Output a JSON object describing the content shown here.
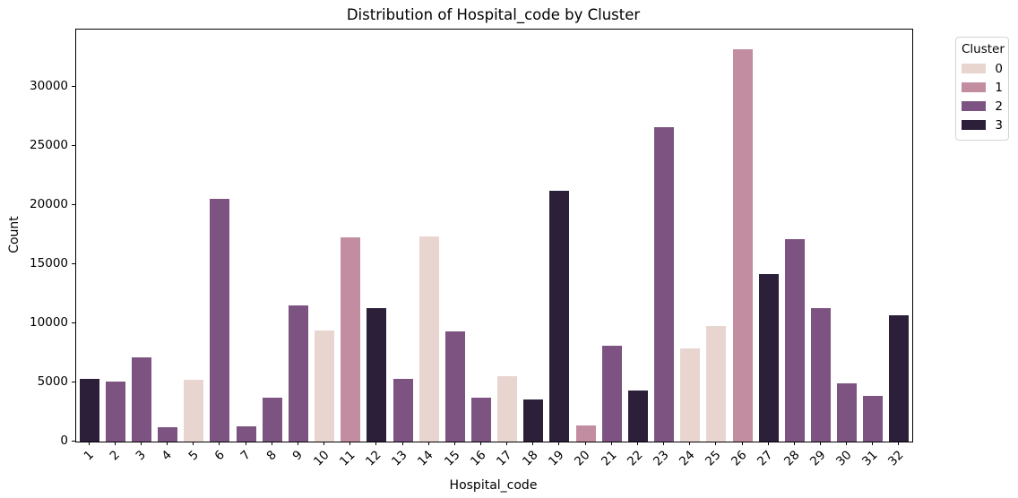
{
  "chart_data": {
    "type": "bar",
    "title": "Distribution of Hospital_code by Cluster",
    "xlabel": "Hospital_code",
    "ylabel": "Count",
    "ylim": [
      0,
      34850
    ],
    "yticks": [
      0,
      5000,
      10000,
      15000,
      20000,
      25000,
      30000
    ],
    "grid": false,
    "legend": {
      "title": "Cluster",
      "position": "upper-right-outside",
      "entries": [
        {
          "label": "0",
          "color": "#e9d5cf"
        },
        {
          "label": "1",
          "color": "#c38da1"
        },
        {
          "label": "2",
          "color": "#7d5381"
        },
        {
          "label": "3",
          "color": "#2c1f3a"
        }
      ]
    },
    "bars": [
      {
        "category": "1",
        "cluster": "3",
        "value": 5300
      },
      {
        "category": "2",
        "cluster": "2",
        "value": 5100
      },
      {
        "category": "3",
        "cluster": "2",
        "value": 7100
      },
      {
        "category": "4",
        "cluster": "2",
        "value": 1200
      },
      {
        "category": "5",
        "cluster": "0",
        "value": 5250
      },
      {
        "category": "6",
        "cluster": "2",
        "value": 20500
      },
      {
        "category": "7",
        "cluster": "2",
        "value": 1300
      },
      {
        "category": "8",
        "cluster": "2",
        "value": 3700
      },
      {
        "category": "9",
        "cluster": "2",
        "value": 11500
      },
      {
        "category": "10",
        "cluster": "0",
        "value": 9400
      },
      {
        "category": "11",
        "cluster": "1",
        "value": 17300
      },
      {
        "category": "12",
        "cluster": "3",
        "value": 11300
      },
      {
        "category": "13",
        "cluster": "2",
        "value": 5300
      },
      {
        "category": "14",
        "cluster": "0",
        "value": 17350
      },
      {
        "category": "15",
        "cluster": "2",
        "value": 9300
      },
      {
        "category": "16",
        "cluster": "2",
        "value": 3700
      },
      {
        "category": "17",
        "cluster": "0",
        "value": 5500
      },
      {
        "category": "18",
        "cluster": "3",
        "value": 3600
      },
      {
        "category": "19",
        "cluster": "3",
        "value": 21200
      },
      {
        "category": "20",
        "cluster": "1",
        "value": 1400
      },
      {
        "category": "21",
        "cluster": "2",
        "value": 8100
      },
      {
        "category": "22",
        "cluster": "3",
        "value": 4300
      },
      {
        "category": "23",
        "cluster": "2",
        "value": 26600
      },
      {
        "category": "24",
        "cluster": "0",
        "value": 7900
      },
      {
        "category": "25",
        "cluster": "0",
        "value": 9800
      },
      {
        "category": "26",
        "cluster": "1",
        "value": 33200
      },
      {
        "category": "27",
        "cluster": "3",
        "value": 14200
      },
      {
        "category": "28",
        "cluster": "2",
        "value": 17100
      },
      {
        "category": "29",
        "cluster": "2",
        "value": 11300
      },
      {
        "category": "30",
        "cluster": "2",
        "value": 4900
      },
      {
        "category": "31",
        "cluster": "2",
        "value": 3900
      },
      {
        "category": "32",
        "cluster": "3",
        "value": 10650
      }
    ]
  }
}
